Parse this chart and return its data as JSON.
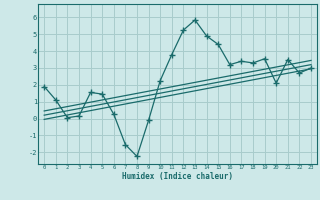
{
  "xlabel": "Humidex (Indice chaleur)",
  "ylabel": "",
  "xlim": [
    -0.5,
    23.5
  ],
  "ylim": [
    -2.7,
    6.8
  ],
  "yticks": [
    -2,
    -1,
    0,
    1,
    2,
    3,
    4,
    5,
    6
  ],
  "xticks": [
    0,
    1,
    2,
    3,
    4,
    5,
    6,
    7,
    8,
    9,
    10,
    11,
    12,
    13,
    14,
    15,
    16,
    17,
    18,
    19,
    20,
    21,
    22,
    23
  ],
  "background_color": "#cde8e8",
  "grid_color": "#a8cccc",
  "line_color": "#1a6b6b",
  "main_x": [
    0,
    1,
    2,
    3,
    4,
    5,
    6,
    7,
    8,
    9,
    10,
    11,
    12,
    13,
    14,
    15,
    16,
    17,
    18,
    19,
    20,
    21,
    22,
    23
  ],
  "main_y": [
    1.9,
    1.1,
    0.05,
    0.15,
    1.55,
    1.45,
    0.25,
    -1.55,
    -2.25,
    -0.1,
    2.25,
    3.8,
    5.25,
    5.85,
    4.9,
    4.4,
    3.2,
    3.4,
    3.3,
    3.55,
    2.1,
    3.5,
    2.7,
    3.0
  ],
  "reg_line1_x": [
    0,
    23
  ],
  "reg_line1_y": [
    0.2,
    3.2
  ],
  "reg_line2_x": [
    0,
    23
  ],
  "reg_line2_y": [
    0.45,
    3.45
  ],
  "reg_line3_x": [
    0,
    23
  ],
  "reg_line3_y": [
    -0.05,
    2.95
  ]
}
